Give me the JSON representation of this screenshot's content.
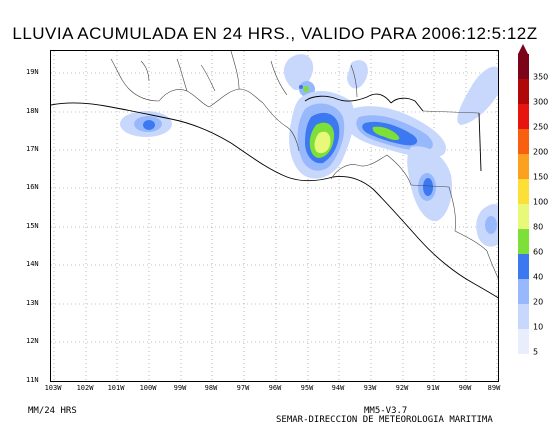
{
  "title": "LLUVIA ACUMULADA EN 24 HRS., VALIDO PARA 2006:12:5:12Z",
  "lat_labels": [
    "19N",
    "18N",
    "17N",
    "16N",
    "15N",
    "14N",
    "13N",
    "12N",
    "11N"
  ],
  "lon_labels": [
    "103W",
    "102W",
    "101W",
    "100W",
    "99W",
    "98W",
    "97W",
    "96W",
    "95W",
    "94W",
    "93W",
    "92W",
    "91W",
    "90W",
    "89W"
  ],
  "units_label": "MM/24 HRS",
  "model_label": "MM5-V3.7",
  "agency_label": "SEMAR-DIRECCION DE METEOROLOGIA MARITIMA",
  "colorbar": {
    "levels": [
      "5",
      "10",
      "20",
      "40",
      "60",
      "80",
      "100",
      "150",
      "200",
      "250",
      "300",
      "350"
    ],
    "colors": [
      "#e8eefc",
      "#c8d8fc",
      "#98b8fc",
      "#3c78f0",
      "#7ce038",
      "#e8f878",
      "#fce038",
      "#fca020",
      "#f86010",
      "#e81410",
      "#b00808",
      "#7c0418"
    ]
  }
}
